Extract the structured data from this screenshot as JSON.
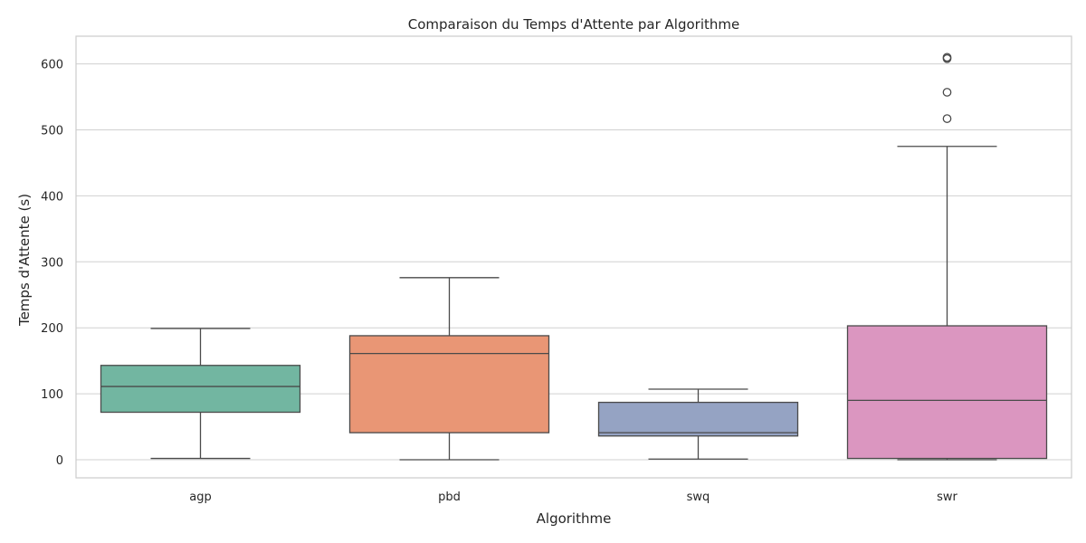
{
  "chart_data": {
    "type": "boxplot",
    "title": "Comparaison du Temps d'Attente par Algorithme",
    "xlabel": "Algorithme",
    "ylabel": "Temps d'Attente (s)",
    "ylim": [
      -30,
      642
    ],
    "yticks": [
      0,
      100,
      200,
      300,
      400,
      500,
      600
    ],
    "grid": true,
    "categories": [
      "agp",
      "pbd",
      "swq",
      "swr"
    ],
    "colors": [
      "#72b6a1",
      "#e99675",
      "#95a3c3",
      "#db96c0"
    ],
    "boxes": [
      {
        "category": "agp",
        "whisker_low": 2,
        "q1": 72,
        "median": 111,
        "q3": 143,
        "whisker_high": 199,
        "outliers": []
      },
      {
        "category": "pbd",
        "whisker_low": 0,
        "q1": 41,
        "median": 161,
        "q3": 188,
        "whisker_high": 276,
        "outliers": []
      },
      {
        "category": "swq",
        "whisker_low": 1,
        "q1": 36,
        "median": 41,
        "q3": 87,
        "whisker_high": 107,
        "outliers": []
      },
      {
        "category": "swr",
        "whisker_low": 0,
        "q1": 2,
        "median": 90,
        "q3": 203,
        "whisker_high": 475,
        "outliers": [
          517,
          557,
          608,
          610
        ]
      }
    ]
  }
}
